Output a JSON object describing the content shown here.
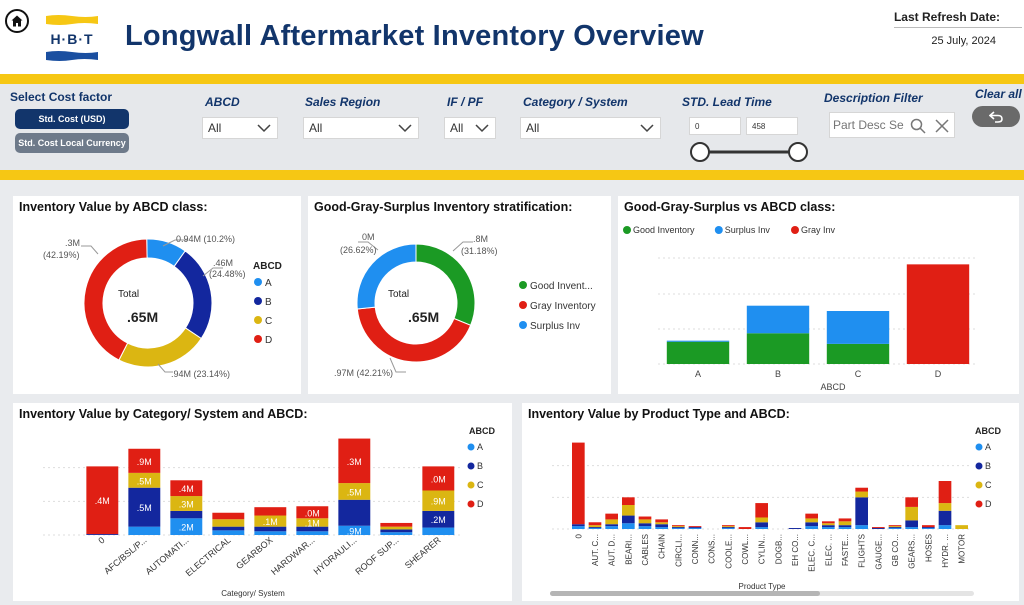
{
  "header": {
    "title": "Longwall Aftermarket Inventory Overview",
    "logo_text": "H·B·T",
    "refresh_label": "Last Refresh Date:",
    "refresh_date": "25 July, 2024"
  },
  "filters": {
    "cost_factor_label": "Select Cost factor",
    "cost_buttons": [
      "Std. Cost (USD)",
      "Std. Cost Local Currency"
    ],
    "abcd": {
      "label": "ABCD",
      "value": "All"
    },
    "sales_region": {
      "label": "Sales Region",
      "value": "All"
    },
    "if_pf": {
      "label": "IF / PF",
      "value": "All"
    },
    "category": {
      "label": "Category / System",
      "value": "All"
    },
    "lead_time": {
      "label": "STD. Lead Time",
      "min": "0",
      "max": "458"
    },
    "description": {
      "label": "Description Filter",
      "placeholder": "Part Desc Se"
    },
    "clear_all": "Clear all"
  },
  "colors": {
    "A": "#1f8ff0",
    "B": "#13279e",
    "C": "#dbb612",
    "D": "#e01f14",
    "good": "#1b9a24",
    "surplus": "#1f8ff0",
    "gray": "#e01f14",
    "title": "#12356b",
    "band": "#f6c714"
  },
  "chart_data": [
    {
      "type": "pie",
      "title": "Inventory Value by ABCD class:",
      "center_label": "Total",
      "center_value": ".65M",
      "legend_title": "ABCD",
      "legend": [
        "A",
        "B",
        "C",
        "D"
      ],
      "slice_labels": [
        "0.94M (10.2%)",
        ".46M (24.48%)",
        ".94M (23.14%)",
        ".3M (42.19%)"
      ],
      "series": [
        {
          "name": "ABCD",
          "values": [
            10.2,
            24.48,
            23.14,
            42.19
          ]
        }
      ]
    },
    {
      "type": "pie",
      "title": "Good-Gray-Surplus Inventory stratification:",
      "center_label": "Total",
      "center_value": ".65M",
      "legend": [
        "Good Invent...",
        "Gray Inventory",
        "Surplus Inv"
      ],
      "slice_labels": [
        ".8M (31.18%)",
        ".97M (42.21%)",
        "0M (26.62%)"
      ],
      "series": [
        {
          "name": "stratification",
          "values": [
            31.18,
            42.21,
            26.62
          ]
        }
      ]
    },
    {
      "type": "bar",
      "title": "Good-Gray-Surplus vs ABCD class:",
      "legend": [
        "Good Inventory",
        "Surplus Inv",
        "Gray Inv"
      ],
      "categories": [
        "A",
        "B",
        "C",
        "D"
      ],
      "xlabel": "ABCD",
      "series": [
        {
          "name": "Good Inventory",
          "values": [
            21,
            29,
            19,
            0
          ]
        },
        {
          "name": "Surplus Inv",
          "values": [
            1,
            26,
            31,
            0
          ]
        },
        {
          "name": "Gray Inv",
          "values": [
            0,
            0,
            0,
            94
          ]
        }
      ],
      "ylim": [
        0,
        100
      ]
    },
    {
      "type": "bar",
      "title": "Inventory Value by Category/ System and ABCD:",
      "legend_title": "ABCD",
      "legend": [
        "A",
        "B",
        "C",
        "D"
      ],
      "xlabel": "Category/ System",
      "categories": [
        "0",
        "AFC/BSL/P...",
        "AUTOMATI...",
        "ELECTRICAL",
        "GEARBOX",
        "HARDWAR...",
        "HYDRAULI...",
        "ROOF SUP...",
        "SHEARER"
      ],
      "series": [
        {
          "name": "A",
          "values": [
            0,
            9,
            18,
            5,
            4,
            4,
            10,
            3,
            8
          ]
        },
        {
          "name": "B",
          "values": [
            1,
            42,
            8,
            4,
            5,
            5,
            28,
            3,
            18
          ]
        },
        {
          "name": "C",
          "values": [
            0,
            16,
            16,
            8,
            12,
            9,
            18,
            3,
            22
          ]
        },
        {
          "name": "D",
          "values": [
            73,
            26,
            17,
            7,
            9,
            13,
            48,
            4,
            26
          ]
        }
      ],
      "data_labels": [
        {
          "category": "0",
          "labels": [
            "",
            "",
            "",
            ".4M"
          ]
        },
        {
          "category": "AFC/BSL/P...",
          "labels": [
            "",
            ".5M",
            ".5M",
            ".9M"
          ]
        },
        {
          "category": "AUTOMATI...",
          "labels": [
            ".2M",
            "",
            ".3M",
            ".4M"
          ]
        },
        {
          "category": "GEARBOX",
          "labels": [
            "",
            "",
            ".1M",
            ""
          ]
        },
        {
          "category": "HARDWAR...",
          "labels": [
            "",
            "",
            ".1M",
            ".0M"
          ]
        },
        {
          "category": "HYDRAULI...",
          "labels": [
            ".9M",
            "",
            ".5M",
            ".3M"
          ]
        },
        {
          "category": "SHEARER",
          "labels": [
            "",
            ".2M",
            ".9M",
            ".0M"
          ]
        }
      ],
      "ylim": [
        0,
        110
      ]
    },
    {
      "type": "bar",
      "title": "Inventory Value by Product Type and ABCD:",
      "legend_title": "ABCD",
      "legend": [
        "A",
        "B",
        "C",
        "D"
      ],
      "xlabel": "Product Type",
      "categories": [
        "0",
        "AUT. C...",
        "AUT. D...",
        "BEARI...",
        "CABLES",
        "CHAIN",
        "CIRCLI...",
        "CONN...",
        "CONS...",
        "COOLE...",
        "COWL...",
        "CYLIN...",
        "DOGB...",
        "EH CO...",
        "ELEC. C...",
        "ELEC. ...",
        "FASTE...",
        "FLIGHTS",
        "GAUGE...",
        "GB CO...",
        "GEARS...",
        "HOSES",
        "HYDR. ...",
        "MOTOR"
      ],
      "series": [
        {
          "name": "A",
          "values": [
            3,
            1,
            3,
            6,
            3,
            2,
            1,
            1,
            0,
            1,
            0,
            2,
            0,
            0,
            3,
            2,
            2,
            4,
            0,
            1,
            2,
            1,
            4,
            0
          ]
        },
        {
          "name": "B",
          "values": [
            2,
            1,
            2,
            8,
            3,
            3,
            1,
            1,
            0,
            1,
            0,
            5,
            0,
            1,
            4,
            2,
            2,
            29,
            1,
            1,
            7,
            1,
            15,
            0
          ]
        },
        {
          "name": "C",
          "values": [
            0,
            2,
            5,
            11,
            4,
            2,
            1,
            0,
            0,
            1,
            0,
            5,
            0,
            0,
            4,
            2,
            4,
            6,
            0,
            1,
            14,
            0,
            8,
            4
          ]
        },
        {
          "name": "D",
          "values": [
            85,
            3,
            6,
            8,
            3,
            3,
            1,
            1,
            0,
            1,
            2,
            15,
            0,
            0,
            5,
            2,
            3,
            4,
            1,
            1,
            10,
            2,
            23,
            0
          ]
        }
      ],
      "ylim": [
        0,
        100
      ]
    }
  ]
}
